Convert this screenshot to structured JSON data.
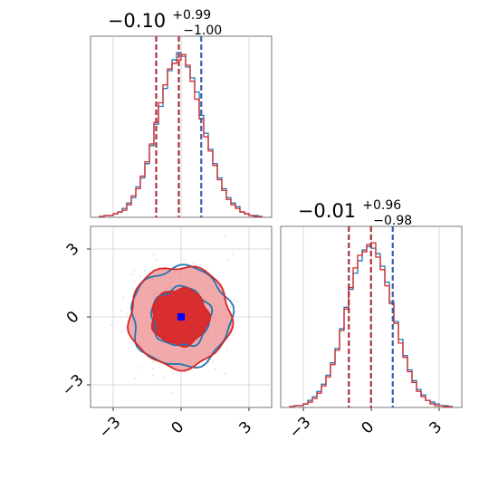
{
  "chart_data": [
    {
      "type": "histogram",
      "panel": "marginal-x",
      "title_main": "−0.10",
      "title_sup": "+0.99",
      "title_sub": "−1.00",
      "xlim": [
        -4.0,
        4.0
      ],
      "bin_centers": [
        -3.5,
        -3.3,
        -3.1,
        -2.9,
        -2.7,
        -2.5,
        -2.3,
        -2.1,
        -1.9,
        -1.7,
        -1.5,
        -1.3,
        -1.1,
        -0.9,
        -0.7,
        -0.5,
        -0.3,
        -0.1,
        0.1,
        0.3,
        0.5,
        0.7,
        0.9,
        1.1,
        1.3,
        1.5,
        1.7,
        1.9,
        2.1,
        2.3,
        2.5,
        2.7,
        2.9,
        3.1,
        3.3,
        3.5
      ],
      "series": [
        {
          "name": "",
          "color": "#1f77b4",
          "values": [
            0.5,
            1,
            1,
            2,
            3,
            5,
            8,
            11,
            17,
            22,
            30,
            40,
            52,
            62,
            72,
            82,
            88,
            92,
            90,
            84,
            78,
            70,
            57,
            47,
            38,
            30,
            22,
            16,
            11,
            8,
            6,
            3,
            2,
            1,
            1,
            0.5
          ]
        },
        {
          "name": "",
          "color": "#d62728",
          "values": [
            0.5,
            1,
            1,
            2,
            3,
            4,
            7,
            12,
            16,
            23,
            31,
            41,
            53,
            64,
            74,
            83,
            86,
            88,
            91,
            85,
            76,
            66,
            55,
            45,
            37,
            29,
            21,
            15,
            10,
            7,
            5,
            3,
            2,
            1,
            0.5,
            0.5
          ]
        }
      ],
      "quantile_lines": [
        -1.1,
        -0.1,
        0.89
      ],
      "grid": true
    },
    {
      "type": "contour",
      "panel": "joint",
      "xlim": [
        -4.0,
        4.0
      ],
      "ylim": [
        -4.0,
        4.0
      ],
      "x_ticks": [
        "−3",
        "0",
        "3"
      ],
      "y_ticks": [
        "3",
        "0",
        "−3"
      ],
      "x_tick_values": [
        -3,
        0,
        3
      ],
      "y_tick_values": [
        3,
        0,
        -3
      ],
      "contour_levels_sigma": [
        1,
        2
      ],
      "series": [
        {
          "name": "",
          "color": "#1f77b4",
          "center": [
            0.0,
            0.0
          ],
          "radii": [
            1.3,
            2.2
          ]
        },
        {
          "name": "",
          "color": "#d62728",
          "center": [
            -0.05,
            0.0
          ],
          "radii": [
            1.25,
            2.25
          ]
        }
      ],
      "truth_marker": {
        "x": 0.0,
        "y": 0.0,
        "color": "#0000ff"
      },
      "grid": true
    },
    {
      "type": "histogram",
      "panel": "marginal-y",
      "title_main": "−0.01",
      "title_sup": "+0.96",
      "title_sub": "−0.98",
      "xlim": [
        -4.0,
        4.0
      ],
      "x_ticks": [
        "−3",
        "0",
        "3"
      ],
      "x_tick_values": [
        -3,
        0,
        3
      ],
      "bin_centers": [
        -3.5,
        -3.3,
        -3.1,
        -2.9,
        -2.7,
        -2.5,
        -2.3,
        -2.1,
        -1.9,
        -1.7,
        -1.5,
        -1.3,
        -1.1,
        -0.9,
        -0.7,
        -0.5,
        -0.3,
        -0.1,
        0.1,
        0.3,
        0.5,
        0.7,
        0.9,
        1.1,
        1.3,
        1.5,
        1.7,
        1.9,
        2.1,
        2.3,
        2.5,
        2.7,
        2.9,
        3.1,
        3.3,
        3.5
      ],
      "series": [
        {
          "name": "",
          "color": "#1f77b4",
          "values": [
            0.5,
            1,
            1,
            2,
            4,
            6,
            9,
            13,
            18,
            25,
            33,
            44,
            56,
            66,
            75,
            82,
            88,
            90,
            89,
            86,
            79,
            70,
            59,
            48,
            38,
            29,
            21,
            15,
            10,
            7,
            4,
            3,
            2,
            1,
            1,
            0.5
          ]
        },
        {
          "name": "",
          "color": "#d62728",
          "values": [
            0.5,
            1,
            1,
            2,
            3,
            5,
            8,
            12,
            17,
            24,
            32,
            43,
            55,
            67,
            78,
            85,
            87,
            91,
            92,
            84,
            77,
            68,
            58,
            47,
            36,
            28,
            20,
            14,
            9,
            6,
            4,
            2,
            1,
            1,
            0.5,
            0.5
          ]
        }
      ],
      "quantile_lines": [
        -0.99,
        -0.01,
        0.95
      ],
      "grid": true
    }
  ]
}
